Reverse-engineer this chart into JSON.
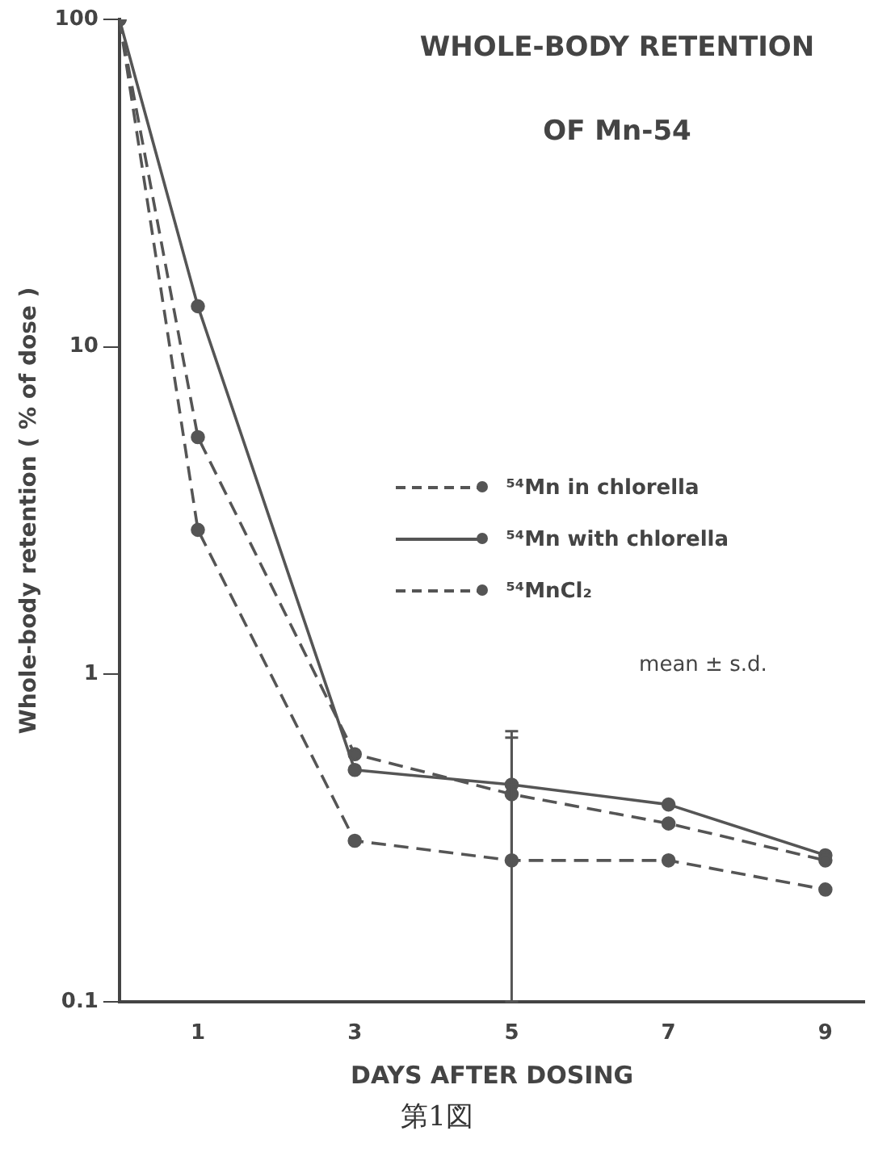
{
  "chart_data": {
    "type": "line",
    "title": "WHOLE-BODY RETENTION\nOF Mn-54",
    "xlabel": "DAYS AFTER DOSING",
    "ylabel": "Whole-body retention ( % of dose )",
    "x": [
      0,
      1,
      3,
      5,
      7,
      9
    ],
    "series": [
      {
        "name": "⁵⁴Mn in chlorella",
        "color": "#555555",
        "line_style": "dashed",
        "values": [
          100,
          5.3,
          0.57,
          0.43,
          0.35,
          0.27
        ],
        "errors": [
          null,
          null,
          null,
          [
            0.27,
            0.67
          ],
          null,
          null
        ]
      },
      {
        "name": "⁵⁴Mn with chlorella",
        "color": "#555555",
        "line_style": "solid",
        "values": [
          100,
          13.3,
          0.51,
          0.46,
          0.4,
          0.28
        ],
        "errors": [
          null,
          null,
          null,
          [
            0.27,
            0.64
          ],
          null,
          null
        ]
      },
      {
        "name": "⁵⁴MnCl₂",
        "color": "#555555",
        "line_style": "dashed",
        "values": [
          100,
          2.76,
          0.31,
          0.27,
          0.27,
          0.22
        ],
        "errors": [
          null,
          null,
          null,
          [
            0.1,
            0.46
          ],
          null,
          null
        ]
      }
    ],
    "log": "y",
    "xlim": [
      0,
      9.5
    ],
    "xticks": [
      1,
      3,
      5,
      7,
      9
    ],
    "ylim": [
      0.1,
      100
    ],
    "yticks": [
      0.1,
      1,
      10,
      100
    ],
    "grid": false,
    "legend": "right",
    "marker": "circle",
    "annotations": [
      "mean ± s.d.",
      "第1図"
    ]
  }
}
